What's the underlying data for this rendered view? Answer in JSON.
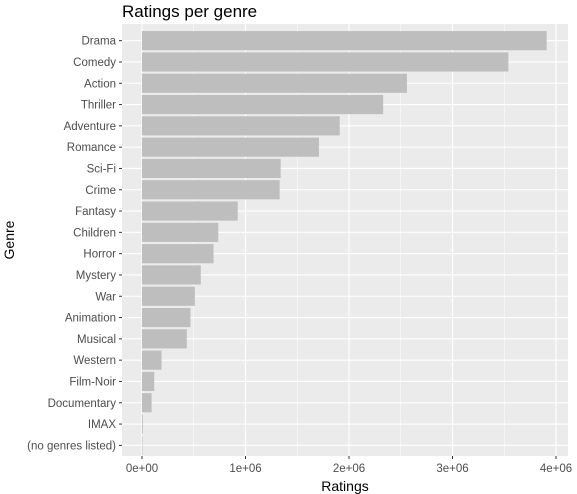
{
  "chart_data": {
    "type": "bar",
    "orientation": "horizontal",
    "title": "Ratings per genre",
    "xlabel": "Ratings",
    "ylabel": "Genre",
    "xlim": [
      0,
      4000000
    ],
    "x_ticks": [
      0,
      1000000,
      2000000,
      3000000,
      4000000
    ],
    "x_tick_labels": [
      "0e+00",
      "1e+06",
      "2e+06",
      "3e+06",
      "4e+06"
    ],
    "grid": true,
    "legend": "none",
    "categories": [
      "Drama",
      "Comedy",
      "Action",
      "Thriller",
      "Adventure",
      "Romance",
      "Sci-Fi",
      "Crime",
      "Fantasy",
      "Children",
      "Horror",
      "Mystery",
      "War",
      "Animation",
      "Musical",
      "Western",
      "Film-Noir",
      "Documentary",
      "IMAX",
      "(no genres listed)"
    ],
    "values": [
      3910000,
      3540000,
      2560000,
      2330000,
      1910000,
      1710000,
      1340000,
      1330000,
      925000,
      737000,
      691000,
      568000,
      511000,
      468000,
      433000,
      189000,
      118000,
      93000,
      8000,
      7
    ],
    "colors": {
      "bar": "#bebebe",
      "panel": "#ebebeb",
      "grid_major": "#ffffff",
      "tick": "#333333"
    }
  }
}
